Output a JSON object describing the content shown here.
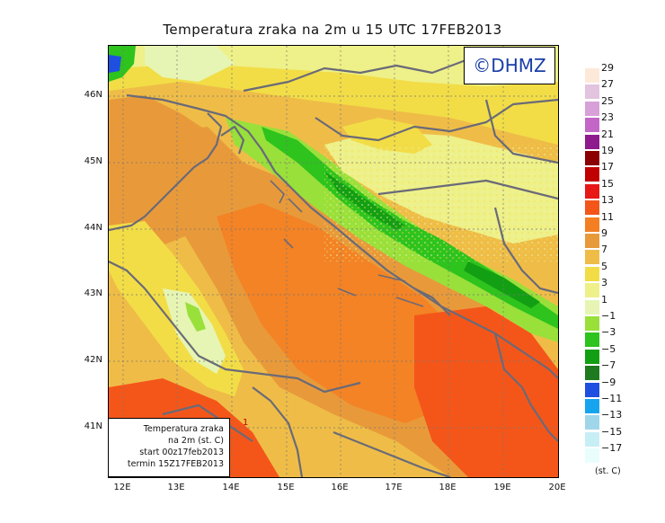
{
  "title": "Temperatura zraka na 2m u 15 UTC 17FEB2013",
  "logo_text": "©DHMZ",
  "info_box": {
    "line1": "Temperatura zraka",
    "line2": "na 2m (st. C)",
    "line3": "start 00z17feb2013",
    "line4": "termin 15Z17FEB2013"
  },
  "lat_ticks": [
    "46N",
    "45N",
    "44N",
    "43N",
    "42N",
    "41N"
  ],
  "lon_ticks": [
    "12E",
    "13E",
    "14E",
    "15E",
    "16E",
    "17E",
    "18E",
    "19E",
    "20E"
  ],
  "legend": {
    "labels": [
      "29",
      "27",
      "25",
      "23",
      "21",
      "19",
      "17",
      "15",
      "13",
      "11",
      "9",
      "7",
      "5",
      "3",
      "1",
      "−1",
      "−3",
      "−5",
      "−7",
      "−9",
      "−11",
      "−13",
      "−15",
      "−17"
    ],
    "colors": [
      "#fde9d9",
      "#e2c4de",
      "#d8a0d8",
      "#c366c8",
      "#8e1a8e",
      "#8b0000",
      "#c00000",
      "#e81818",
      "#f4561a",
      "#f47f22",
      "#e89a3a",
      "#efbd47",
      "#f2dd47",
      "#eef089",
      "#e6f5b3",
      "#99e03b",
      "#2ec31d",
      "#139f13",
      "#1e7a1e",
      "#1f4fe0",
      "#16a4ef",
      "#9fd6ea",
      "#c8eef5",
      "#eafdfd"
    ],
    "unit": "(st. C)"
  },
  "marker": "1"
}
